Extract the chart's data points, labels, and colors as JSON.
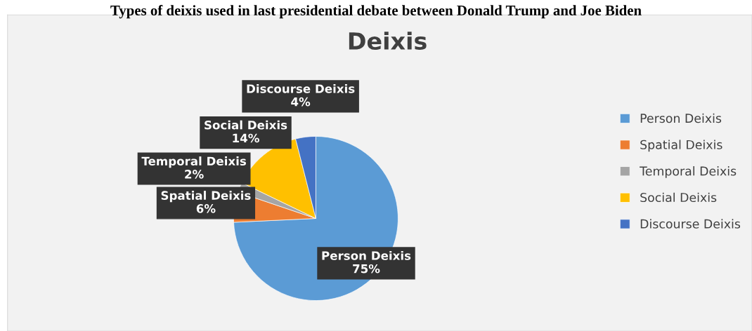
{
  "chart_data": {
    "type": "pie",
    "title": "Types of deixis used in last presidential debate between Donald Trump and Joe Biden",
    "subtitle": "Deixis",
    "categories": [
      "Person Deixis",
      "Spatial Deixis",
      "Temporal Deixis",
      "Social Deixis",
      "Discourse Deixis"
    ],
    "values": [
      75,
      6,
      2,
      14,
      4
    ],
    "colors": [
      "#5b9bd5",
      "#ed7d31",
      "#a5a5a5",
      "#ffc000",
      "#4472c4"
    ],
    "value_labels": [
      "75%",
      "6%",
      "2%",
      "14%",
      "4%"
    ],
    "legend": "right"
  }
}
